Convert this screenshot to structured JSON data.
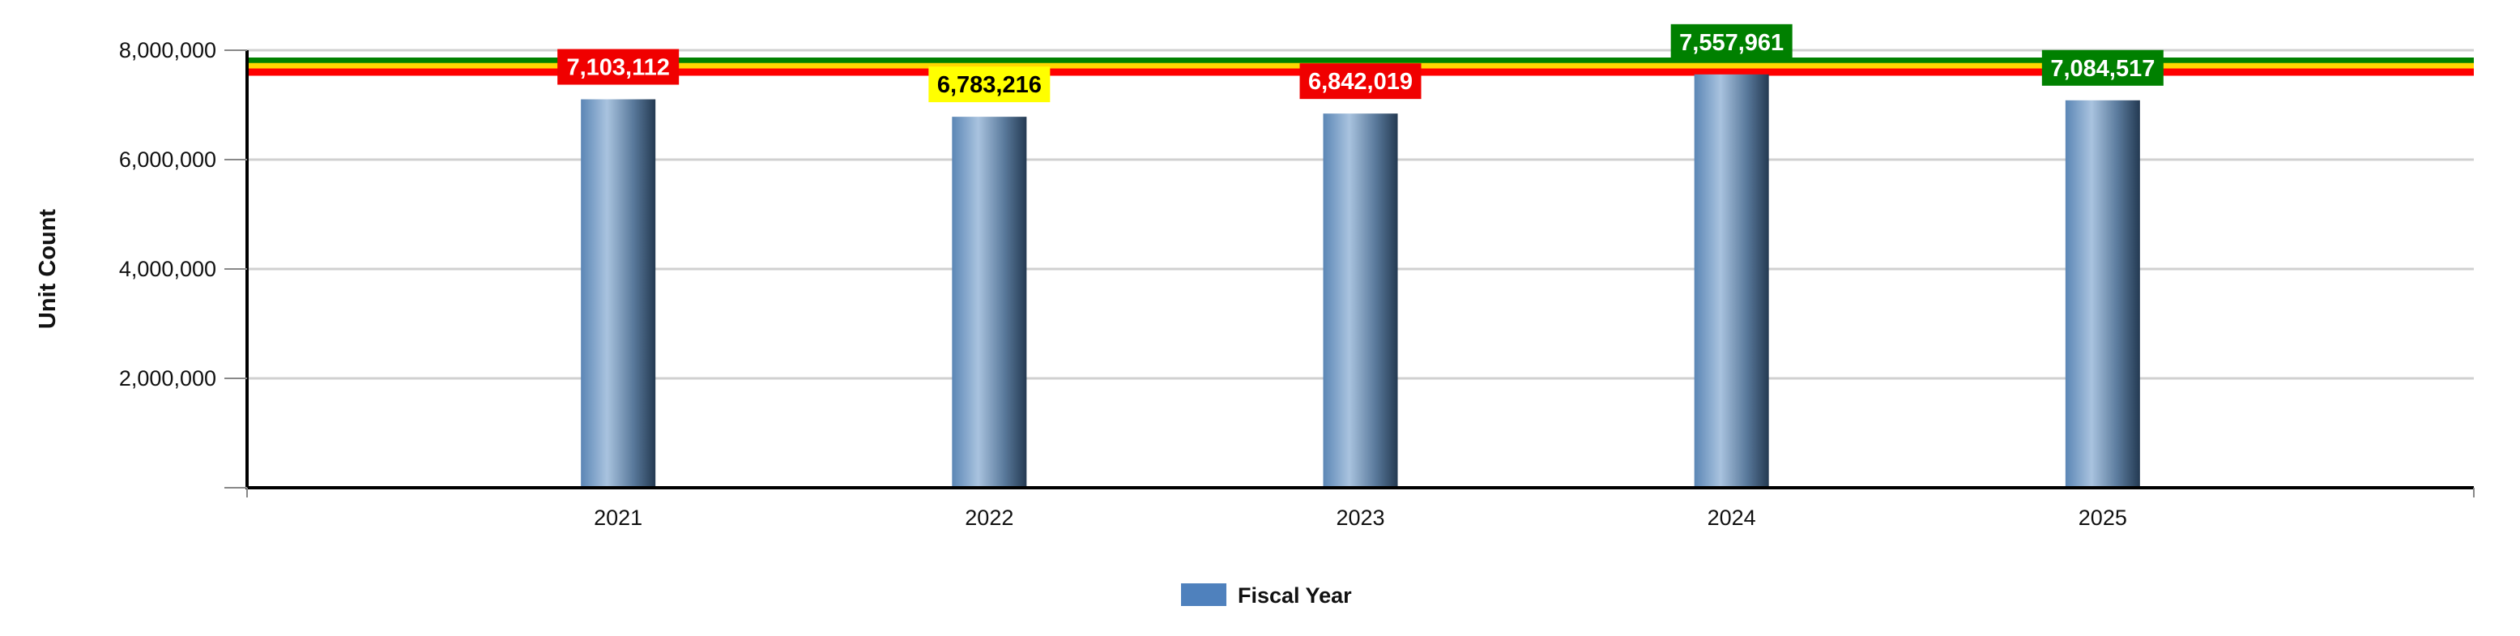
{
  "chart_data": {
    "type": "bar",
    "categories": [
      "2021",
      "2022",
      "2023",
      "2024",
      "2025"
    ],
    "series": [
      {
        "name": "Fiscal Year",
        "values": [
          7103112,
          6783216,
          6842019,
          7557961,
          7084517
        ]
      }
    ],
    "data_labels": [
      "7,103,112",
      "6,783,216",
      "6,842,019",
      "7,557,961",
      "7,084,517"
    ],
    "label_colors": [
      "#f00000",
      "#ffff00",
      "#f00000",
      "#008000",
      "#008000"
    ],
    "label_text_colors": [
      "#ffffff",
      "#000000",
      "#ffffff",
      "#ffffff",
      "#ffffff"
    ],
    "reference_lines": [
      {
        "value": 7800000,
        "color": "#008000"
      },
      {
        "value": 7700000,
        "color": "#ffd700"
      },
      {
        "value": 7600000,
        "color": "#ff0000"
      }
    ],
    "ylabel": "Unit Count",
    "xlabel": "",
    "ylim": [
      0,
      8000000
    ],
    "yticks": [
      2000000,
      4000000,
      6000000,
      8000000
    ],
    "ytick_labels": [
      "2,000,000",
      "4,000,000",
      "6,000,000",
      "8,000,000"
    ],
    "grid": true,
    "legend": "bottom-center",
    "colors": {
      "bar": "#4f81bd",
      "bar_light": "#a8c4e0",
      "bar_dark": "#1f3a55"
    }
  }
}
